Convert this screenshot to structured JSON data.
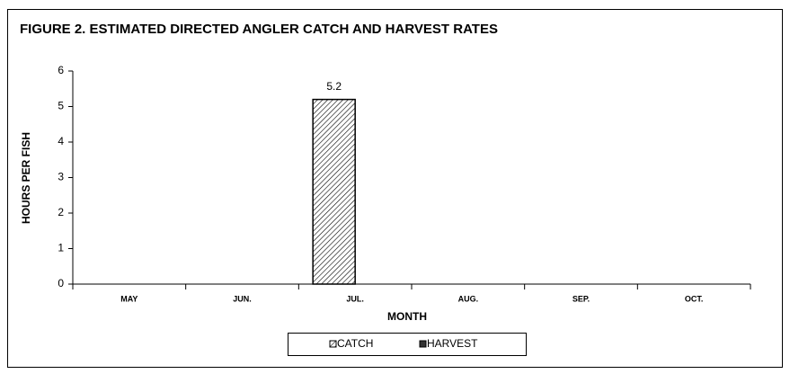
{
  "chart_data": {
    "type": "bar",
    "title": "FIGURE 2.  ESTIMATED DIRECTED ANGLER CATCH AND HARVEST RATES",
    "x_label": "MONTH",
    "y_label": "HOURS PER FISH",
    "categories": [
      "MAY",
      "JUN.",
      "JUL.",
      "AUG.",
      "SEP.",
      "OCT."
    ],
    "series": [
      {
        "name": "CATCH",
        "color": "#000000",
        "pattern": "diagonal-hatch",
        "values": [
          null,
          null,
          5.2,
          null,
          null,
          null
        ]
      },
      {
        "name": "HARVEST",
        "color": "#333333",
        "pattern": "solid",
        "values": [
          null,
          null,
          null,
          null,
          null,
          null
        ]
      }
    ],
    "ylim": [
      0,
      6
    ],
    "yticks": [
      0,
      1,
      2,
      3,
      4,
      5,
      6
    ],
    "grid": false,
    "legend": "bottom"
  }
}
